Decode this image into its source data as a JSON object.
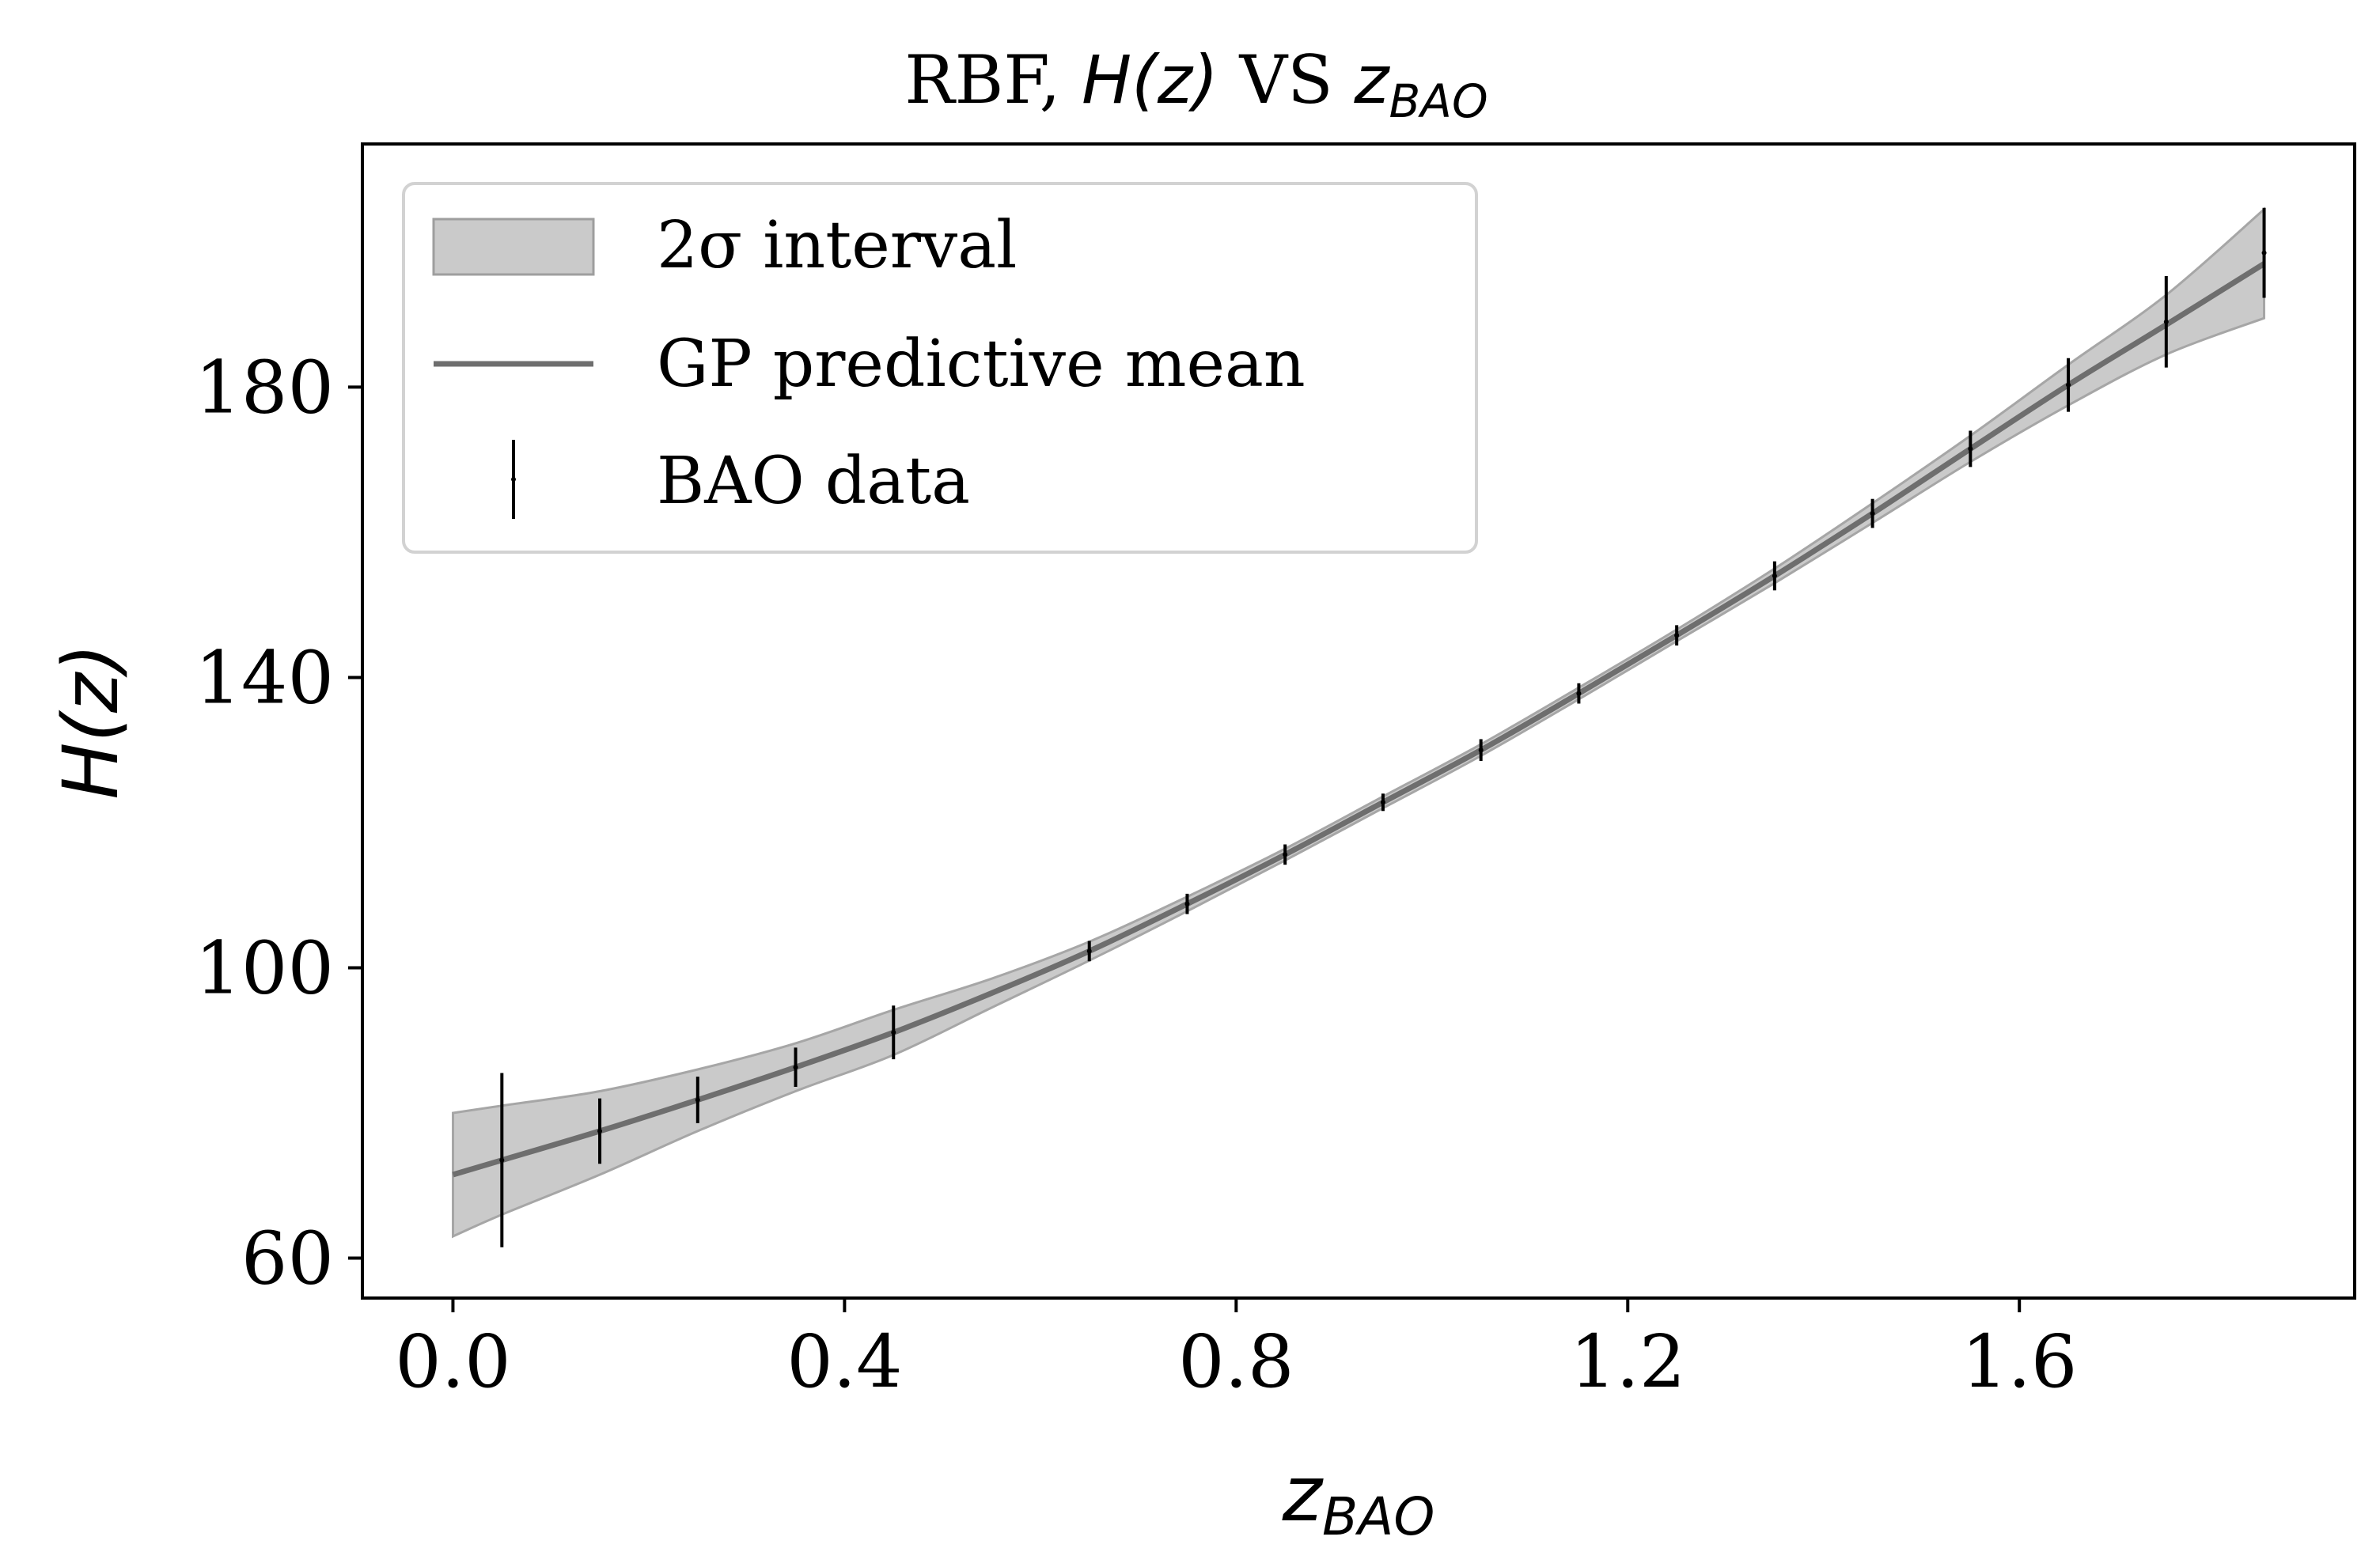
{
  "chart_data": {
    "type": "line",
    "title": {
      "prefix": "RBF, ",
      "var": "H",
      "arg": "(z)",
      "mid": " VS ",
      "base": "z",
      "sub": "BAO"
    },
    "xlabel": {
      "base": "z",
      "sub": "BAO"
    },
    "ylabel": {
      "var": "H",
      "arg": "(z)"
    },
    "xlim": [
      -0.0925,
      1.9425
    ],
    "ylim": [
      54.5,
      213.5
    ],
    "xticks": [
      0.0,
      0.4,
      0.8,
      1.2,
      1.6
    ],
    "xtick_labels": [
      "0.0",
      "0.4",
      "0.8",
      "1.2",
      "1.6"
    ],
    "yticks": [
      60,
      100,
      140,
      180
    ],
    "ytick_labels": [
      "60",
      "100",
      "140",
      "180"
    ],
    "grid": false,
    "legend_position": "upper-left",
    "legend": [
      {
        "label": "2σ interval",
        "kind": "band"
      },
      {
        "label": "GP predictive mean",
        "kind": "line"
      },
      {
        "label": "BAO data",
        "kind": "errorbar"
      }
    ],
    "series": [
      {
        "name": "GP predictive mean",
        "kind": "line",
        "color": "#6e6e6e",
        "x": [
          0.0,
          0.05,
          0.15,
          0.25,
          0.35,
          0.45,
          0.55,
          0.65,
          0.75,
          0.85,
          0.95,
          1.05,
          1.15,
          1.25,
          1.35,
          1.45,
          1.55,
          1.65,
          1.75,
          1.85
        ],
        "y": [
          71.5,
          73.5,
          77.5,
          81.8,
          86.3,
          91.1,
          96.5,
          102.3,
          108.8,
          115.6,
          122.8,
          130.0,
          137.8,
          145.8,
          154.0,
          162.6,
          171.5,
          180.3,
          188.6,
          197.0
        ]
      },
      {
        "name": "2σ interval",
        "kind": "band",
        "color": "#bdbdbd",
        "x": [
          0.0,
          0.05,
          0.15,
          0.25,
          0.35,
          0.45,
          0.55,
          0.65,
          0.75,
          0.85,
          0.95,
          1.05,
          1.15,
          1.25,
          1.35,
          1.45,
          1.55,
          1.65,
          1.75,
          1.85
        ],
        "lower": [
          63.0,
          66.0,
          71.5,
          77.5,
          83.0,
          88.0,
          94.5,
          101.0,
          107.8,
          114.8,
          122.0,
          129.2,
          137.0,
          145.0,
          153.0,
          161.3,
          169.7,
          177.5,
          184.5,
          189.5
        ],
        "upper": [
          80.0,
          81.0,
          83.0,
          86.0,
          89.6,
          94.2,
          98.5,
          103.6,
          109.8,
          116.4,
          123.6,
          130.8,
          138.6,
          146.6,
          155.0,
          164.0,
          173.3,
          183.1,
          192.7,
          204.5
        ]
      },
      {
        "name": "BAO data",
        "kind": "errorbar",
        "color": "#000000",
        "x": [
          0.05,
          0.15,
          0.25,
          0.35,
          0.45,
          0.65,
          0.75,
          0.85,
          0.95,
          1.05,
          1.15,
          1.25,
          1.35,
          1.45,
          1.55,
          1.65,
          1.75,
          1.85
        ],
        "y": [
          73.5,
          77.5,
          81.8,
          86.3,
          91.1,
          102.3,
          108.8,
          115.6,
          122.8,
          130.0,
          137.8,
          145.8,
          154.0,
          162.6,
          171.5,
          180.3,
          189.0,
          198.5
        ],
        "err": [
          12.0,
          4.5,
          3.2,
          2.7,
          3.7,
          1.4,
          1.4,
          1.4,
          1.2,
          1.5,
          1.4,
          1.4,
          2.0,
          2.0,
          2.5,
          3.7,
          6.3,
          6.2
        ]
      }
    ]
  }
}
